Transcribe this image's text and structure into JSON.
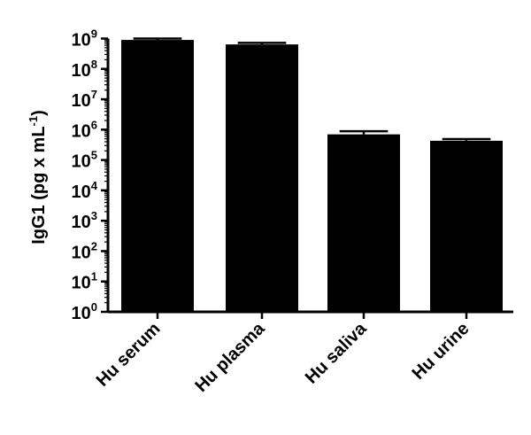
{
  "chart_data": {
    "type": "bar",
    "title": "",
    "xlabel": "",
    "ylabel": "IgG1 (pg x mL",
    "ylabel_superscript": "-1",
    "ylabel_close": ")",
    "yscale": "log",
    "ylim": [
      1,
      1000000000
    ],
    "yticks": [
      {
        "base": "10",
        "exp": "0"
      },
      {
        "base": "10",
        "exp": "1"
      },
      {
        "base": "10",
        "exp": "2"
      },
      {
        "base": "10",
        "exp": "3"
      },
      {
        "base": "10",
        "exp": "4"
      },
      {
        "base": "10",
        "exp": "5"
      },
      {
        "base": "10",
        "exp": "6"
      },
      {
        "base": "10",
        "exp": "7"
      },
      {
        "base": "10",
        "exp": "8"
      },
      {
        "base": "10",
        "exp": "9"
      }
    ],
    "categories": [
      "Hu serum",
      "Hu plasma",
      "Hu saliva",
      "Hu urine"
    ],
    "values": [
      900000000,
      640000000,
      700000.0,
      430000
    ],
    "error_upper": [
      1000000000,
      720000000,
      890000,
      490000
    ],
    "bar_color": "#000000",
    "grid": false,
    "legend": "none"
  }
}
